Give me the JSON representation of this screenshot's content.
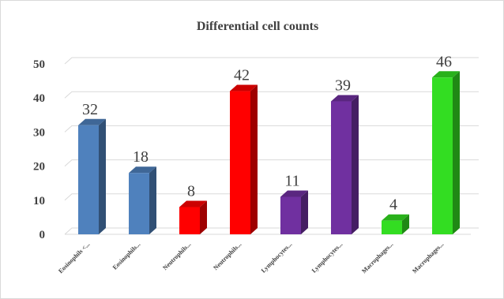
{
  "chart_data": {
    "type": "bar",
    "title": "Differential cell counts",
    "categories": [
      "Eosinophils <...",
      "Eosinophils...",
      "Neutrophils...",
      "Neutrophils...",
      "Lymphocytes...",
      "Lymphocytes...",
      "Macrophages...",
      "Macrophages..."
    ],
    "values": [
      32,
      18,
      8,
      42,
      11,
      39,
      4,
      46
    ],
    "bar_colors": [
      "#4f81bd",
      "#4f81bd",
      "#ff0000",
      "#ff0000",
      "#7030a0",
      "#7030a0",
      "#33dd22",
      "#33dd22"
    ],
    "yticks": [
      "0",
      "10",
      "20",
      "30",
      "40",
      "50"
    ],
    "ylim": [
      0,
      50
    ],
    "xlabel": "",
    "ylabel": "",
    "grid": true,
    "legend": "none",
    "style": "3d-column"
  }
}
